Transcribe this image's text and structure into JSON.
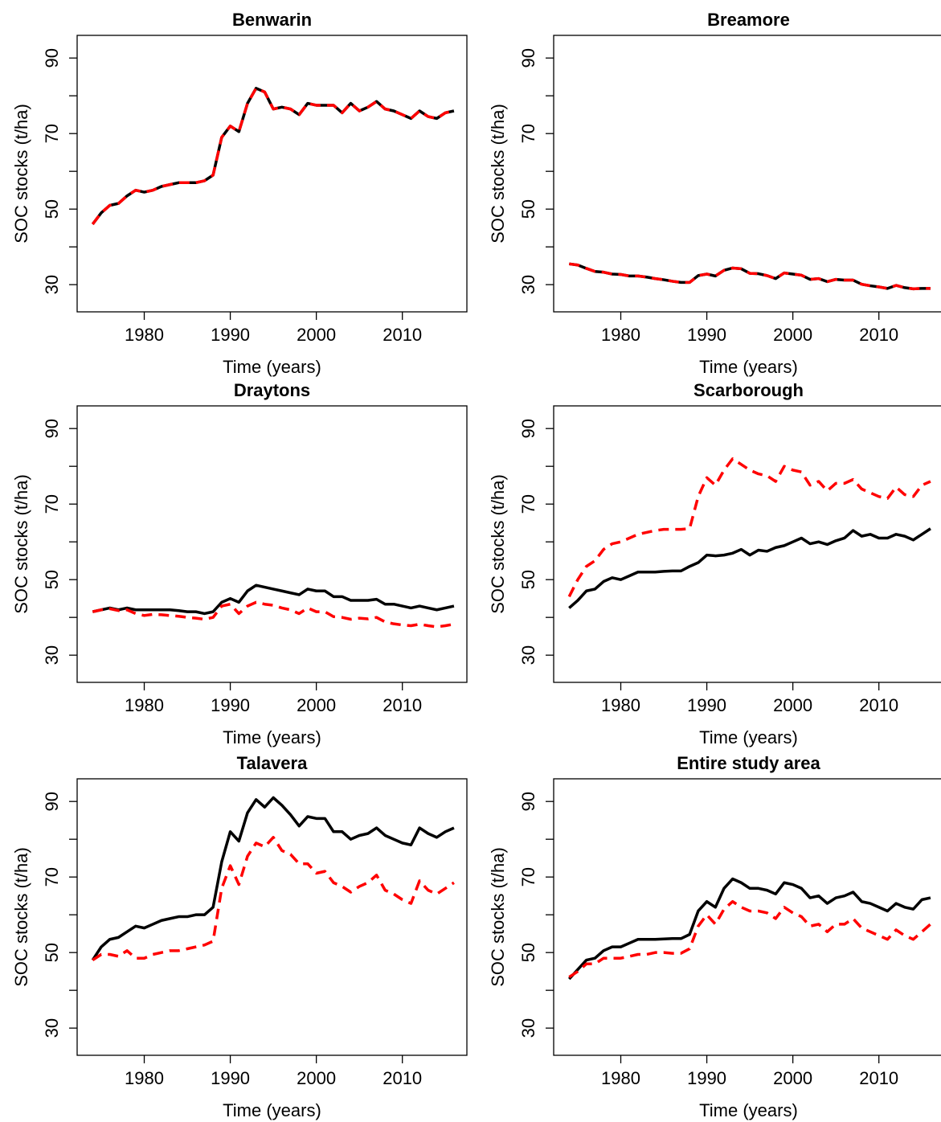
{
  "chart_data": [
    {
      "type": "line",
      "title": "Benwarin",
      "xlabel": "Time (years)",
      "ylabel": "SOC stocks (t/ha)",
      "x": [
        1974,
        1975,
        1976,
        1977,
        1978,
        1979,
        1980,
        1981,
        1982,
        1983,
        1984,
        1985,
        1986,
        1987,
        1988,
        1989,
        1990,
        1991,
        1992,
        1993,
        1994,
        1995,
        1996,
        1997,
        1998,
        1999,
        2000,
        2001,
        2002,
        2003,
        2004,
        2005,
        2006,
        2007,
        2008,
        2009,
        2010,
        2011,
        2012,
        2013,
        2014,
        2015,
        2016
      ],
      "series": [
        {
          "color": "#000000",
          "dash": false,
          "values": [
            46,
            49,
            51,
            51.5,
            53.5,
            55,
            54.5,
            55,
            56,
            56.5,
            57,
            57,
            57,
            57.5,
            59,
            69,
            72,
            70.5,
            78,
            82,
            81,
            76.5,
            77,
            76.5,
            75,
            78,
            77.5,
            77.5,
            77.5,
            75.5,
            78,
            76,
            77,
            78.5,
            76.5,
            76,
            75,
            74,
            76,
            74.5,
            74,
            75.5,
            76
          ]
        },
        {
          "color": "#ff0000",
          "dash": true,
          "values": [
            46,
            49,
            51,
            51.5,
            53.5,
            55,
            54.5,
            55,
            56,
            56.5,
            57,
            57,
            57,
            57.5,
            59,
            69,
            72,
            70.5,
            78,
            82,
            81,
            76.5,
            77,
            76.5,
            75,
            78,
            77.5,
            77.5,
            77.5,
            75.5,
            78,
            76,
            77,
            78.5,
            76.5,
            76,
            75,
            74,
            76,
            74.5,
            74,
            75.5,
            76
          ]
        }
      ],
      "xlim": [
        1972.2,
        2017.5
      ],
      "xticks": [
        1980,
        1990,
        2000,
        2010
      ],
      "ylim": [
        22.8,
        96
      ],
      "yticks": [
        30,
        {
          "value": 40,
          "label": null
        },
        50,
        {
          "value": 60,
          "label": null
        },
        70,
        {
          "value": 80,
          "label": null
        },
        90
      ]
    },
    {
      "type": "line",
      "title": "Breamore",
      "xlabel": "Time (years)",
      "ylabel": "SOC stocks (t/ha)",
      "x": [
        1974,
        1975,
        1976,
        1977,
        1978,
        1979,
        1980,
        1981,
        1982,
        1983,
        1984,
        1985,
        1986,
        1987,
        1988,
        1989,
        1990,
        1991,
        1992,
        1993,
        1994,
        1995,
        1996,
        1997,
        1998,
        1999,
        2000,
        2001,
        2002,
        2003,
        2004,
        2005,
        2006,
        2007,
        2008,
        2009,
        2010,
        2011,
        2012,
        2013,
        2014,
        2015,
        2016
      ],
      "series": [
        {
          "color": "#000000",
          "dash": false,
          "values": [
            35.5,
            35.2,
            34.3,
            33.5,
            33.3,
            32.8,
            32.7,
            32.3,
            32.3,
            32,
            31.6,
            31.3,
            30.9,
            30.6,
            30.6,
            32.4,
            32.8,
            32.3,
            33.8,
            34.4,
            34.2,
            33,
            32.9,
            32.4,
            31.6,
            33.1,
            32.8,
            32.5,
            31.4,
            31.6,
            30.8,
            31.4,
            31.2,
            31.2,
            30.1,
            29.7,
            29.4,
            29,
            29.8,
            29.2,
            28.9,
            29,
            29
          ]
        },
        {
          "color": "#ff0000",
          "dash": true,
          "values": [
            35.5,
            35.2,
            34.3,
            33.5,
            33.3,
            32.8,
            32.7,
            32.3,
            32.3,
            32,
            31.6,
            31.3,
            30.9,
            30.6,
            30.6,
            32.4,
            32.8,
            32.3,
            33.8,
            34.4,
            34.2,
            33,
            32.9,
            32.4,
            31.6,
            33.1,
            32.8,
            32.5,
            31.4,
            31.6,
            30.8,
            31.4,
            31.2,
            31.2,
            30.1,
            29.7,
            29.4,
            29,
            29.8,
            29.2,
            28.9,
            29,
            29
          ]
        }
      ],
      "xlim": [
        1972.2,
        2017.5
      ],
      "xticks": [
        1980,
        1990,
        2000,
        2010
      ],
      "ylim": [
        22.8,
        96
      ],
      "yticks": [
        30,
        {
          "value": 40,
          "label": null
        },
        50,
        {
          "value": 60,
          "label": null
        },
        70,
        {
          "value": 80,
          "label": null
        },
        90
      ]
    },
    {
      "type": "line",
      "title": "Draytons",
      "xlabel": "Time (years)",
      "ylabel": "SOC stocks (t/ha)",
      "x": [
        1974,
        1975,
        1976,
        1977,
        1978,
        1979,
        1980,
        1981,
        1982,
        1983,
        1984,
        1985,
        1986,
        1987,
        1988,
        1989,
        1990,
        1991,
        1992,
        1993,
        1994,
        1995,
        1996,
        1997,
        1998,
        1999,
        2000,
        2001,
        2002,
        2003,
        2004,
        2005,
        2006,
        2007,
        2008,
        2009,
        2010,
        2011,
        2012,
        2013,
        2014,
        2015,
        2016
      ],
      "series": [
        {
          "color": "#000000",
          "dash": false,
          "values": [
            41.5,
            42,
            42.5,
            42,
            42.5,
            42,
            42,
            42,
            42,
            42,
            41.8,
            41.5,
            41.5,
            41,
            41.5,
            44,
            45,
            44,
            47,
            48.5,
            48,
            47.5,
            47,
            46.5,
            46,
            47.5,
            47,
            47,
            45.5,
            45.5,
            44.5,
            44.5,
            44.5,
            44.8,
            43.5,
            43.5,
            43,
            42.5,
            43,
            42.5,
            42,
            42.5,
            43
          ]
        },
        {
          "color": "#ff0000",
          "dash": true,
          "values": [
            41.5,
            42,
            42.3,
            41.8,
            42,
            41,
            40.5,
            40.8,
            40.7,
            40.5,
            40.3,
            40,
            39.8,
            39.5,
            40,
            43,
            43.5,
            41,
            43,
            44,
            43.5,
            43.2,
            42.5,
            42,
            41,
            42.5,
            41.5,
            41.5,
            40.2,
            40,
            39.5,
            39.8,
            39.6,
            40,
            38.8,
            38.3,
            38,
            37.8,
            38.2,
            37.8,
            37.5,
            37.8,
            38.2
          ]
        }
      ],
      "xlim": [
        1972.2,
        2017.5
      ],
      "xticks": [
        1980,
        1990,
        2000,
        2010
      ],
      "ylim": [
        22.8,
        96
      ],
      "yticks": [
        30,
        {
          "value": 40,
          "label": null
        },
        50,
        {
          "value": 60,
          "label": null
        },
        70,
        {
          "value": 80,
          "label": null
        },
        90
      ]
    },
    {
      "type": "line",
      "title": "Scarborough",
      "xlabel": "Time (years)",
      "ylabel": "SOC stocks (t/ha)",
      "x": [
        1974,
        1975,
        1976,
        1977,
        1978,
        1979,
        1980,
        1981,
        1982,
        1983,
        1984,
        1985,
        1986,
        1987,
        1988,
        1989,
        1990,
        1991,
        1992,
        1993,
        1994,
        1995,
        1996,
        1997,
        1998,
        1999,
        2000,
        2001,
        2002,
        2003,
        2004,
        2005,
        2006,
        2007,
        2008,
        2009,
        2010,
        2011,
        2012,
        2013,
        2014,
        2015,
        2016
      ],
      "series": [
        {
          "color": "#000000",
          "dash": false,
          "values": [
            42.5,
            44.5,
            47,
            47.5,
            49.5,
            50.5,
            50,
            51,
            52,
            52,
            52,
            52.2,
            52.3,
            52.3,
            53.5,
            54.5,
            56.5,
            56.3,
            56.5,
            57,
            58,
            56.5,
            57.8,
            57.5,
            58.5,
            59,
            60,
            61,
            59.5,
            60,
            59.3,
            60.3,
            61,
            63,
            61.5,
            62,
            61,
            61,
            62,
            61.5,
            60.5,
            62,
            63.5
          ]
        },
        {
          "color": "#ff0000",
          "dash": true,
          "values": [
            45.5,
            50,
            53.5,
            55,
            58,
            59.5,
            60,
            61,
            62,
            62.5,
            63,
            63.3,
            63.3,
            63.3,
            63.5,
            72,
            77,
            75,
            79,
            82,
            80.5,
            79,
            78,
            77.5,
            76,
            80,
            79,
            78.5,
            75,
            76,
            73.5,
            75.5,
            75.5,
            76.5,
            74,
            73,
            72,
            71.5,
            74.5,
            72.5,
            72,
            75,
            76
          ]
        }
      ],
      "xlim": [
        1972.2,
        2017.5
      ],
      "xticks": [
        1980,
        1990,
        2000,
        2010
      ],
      "ylim": [
        22.8,
        96
      ],
      "yticks": [
        30,
        {
          "value": 40,
          "label": null
        },
        50,
        {
          "value": 60,
          "label": null
        },
        70,
        {
          "value": 80,
          "label": null
        },
        90
      ]
    },
    {
      "type": "line",
      "title": "Talavera",
      "xlabel": "Time (years)",
      "ylabel": "SOC stocks (t/ha)",
      "x": [
        1974,
        1975,
        1976,
        1977,
        1978,
        1979,
        1980,
        1981,
        1982,
        1983,
        1984,
        1985,
        1986,
        1987,
        1988,
        1989,
        1990,
        1991,
        1992,
        1993,
        1994,
        1995,
        1996,
        1997,
        1998,
        1999,
        2000,
        2001,
        2002,
        2003,
        2004,
        2005,
        2006,
        2007,
        2008,
        2009,
        2010,
        2011,
        2012,
        2013,
        2014,
        2015,
        2016
      ],
      "series": [
        {
          "color": "#000000",
          "dash": false,
          "values": [
            48,
            51.5,
            53.5,
            54,
            55.5,
            57,
            56.5,
            57.5,
            58.5,
            59,
            59.5,
            59.5,
            60,
            60,
            62,
            74,
            82,
            79.5,
            87,
            90.5,
            88.5,
            91,
            89,
            86.5,
            83.5,
            86,
            85.5,
            85.5,
            82,
            82,
            80,
            81,
            81.5,
            83,
            81,
            80,
            79,
            78.5,
            83,
            81.5,
            80.5,
            82,
            83
          ]
        },
        {
          "color": "#ff0000",
          "dash": true,
          "values": [
            48,
            49.5,
            49.5,
            49,
            50.5,
            48.5,
            48.5,
            49.5,
            50,
            50.5,
            50.5,
            51,
            51.5,
            52,
            53,
            67,
            73,
            68,
            75.5,
            79,
            78,
            80.5,
            77,
            76,
            73.5,
            73.5,
            71,
            71.5,
            68.5,
            67.5,
            66,
            67.5,
            68.5,
            70.5,
            66.5,
            65.5,
            64,
            63,
            69,
            66.5,
            65.5,
            67,
            68.5
          ]
        }
      ],
      "xlim": [
        1972.2,
        2017.5
      ],
      "xticks": [
        1980,
        1990,
        2000,
        2010
      ],
      "ylim": [
        22.8,
        96
      ],
      "yticks": [
        30,
        {
          "value": 40,
          "label": null
        },
        50,
        {
          "value": 60,
          "label": null
        },
        70,
        {
          "value": 80,
          "label": null
        },
        90
      ]
    },
    {
      "type": "line",
      "title": "Entire study area",
      "xlabel": "Time (years)",
      "ylabel": "SOC stocks (t/ha)",
      "x": [
        1974,
        1975,
        1976,
        1977,
        1978,
        1979,
        1980,
        1981,
        1982,
        1983,
        1984,
        1985,
        1986,
        1987,
        1988,
        1989,
        1990,
        1991,
        1992,
        1993,
        1994,
        1995,
        1996,
        1997,
        1998,
        1999,
        2000,
        2001,
        2002,
        2003,
        2004,
        2005,
        2006,
        2007,
        2008,
        2009,
        2010,
        2011,
        2012,
        2013,
        2014,
        2015,
        2016
      ],
      "series": [
        {
          "color": "#000000",
          "dash": false,
          "values": [
            43,
            45.5,
            48,
            48.5,
            50.5,
            51.5,
            51.5,
            52.5,
            53.5,
            53.5,
            53.5,
            53.6,
            53.7,
            53.7,
            54.8,
            61,
            63.5,
            62,
            67,
            69.5,
            68.5,
            67,
            67,
            66.5,
            65.5,
            68.5,
            68,
            67,
            64.5,
            65,
            63,
            64.5,
            65,
            66,
            63.5,
            63,
            62,
            61,
            63,
            62,
            61.5,
            64,
            64.5
          ]
        },
        {
          "color": "#ff0000",
          "dash": true,
          "values": [
            43.5,
            45,
            47,
            47,
            48.5,
            48.5,
            48.5,
            49,
            49.5,
            49.5,
            50,
            50,
            49.8,
            49.8,
            51,
            57,
            60,
            57.5,
            61.5,
            63.5,
            62,
            61,
            61,
            60.5,
            59,
            62,
            60.5,
            59.5,
            57,
            57.5,
            55.5,
            57.5,
            57.5,
            59,
            56.5,
            55.5,
            54.5,
            53.5,
            56,
            54.5,
            53.5,
            55.5,
            57.5
          ]
        }
      ],
      "xlim": [
        1972.2,
        2017.5
      ],
      "xticks": [
        1980,
        1990,
        2000,
        2010
      ],
      "ylim": [
        22.8,
        96
      ],
      "yticks": [
        30,
        {
          "value": 40,
          "label": null
        },
        50,
        {
          "value": 60,
          "label": null
        },
        70,
        {
          "value": 80,
          "label": null
        },
        90
      ]
    }
  ]
}
